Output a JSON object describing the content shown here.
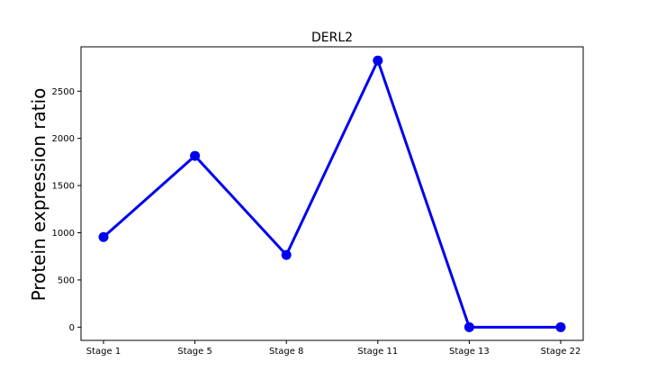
{
  "chart_data": {
    "type": "line",
    "title": "DERL2",
    "xlabel": "",
    "ylabel": "Protein expression ratio",
    "categories": [
      "Stage 1",
      "Stage 5",
      "Stage 8",
      "Stage 11",
      "Stage 13",
      "Stage 22"
    ],
    "series": [
      {
        "values": [
          955,
          1815,
          765,
          2825,
          0,
          0
        ],
        "color": "#0000ee"
      }
    ],
    "yticks": [
      0,
      500,
      1000,
      1500,
      2000,
      2500
    ],
    "ylim": [
      -140,
      2970
    ],
    "grid": false,
    "legend": "none"
  }
}
